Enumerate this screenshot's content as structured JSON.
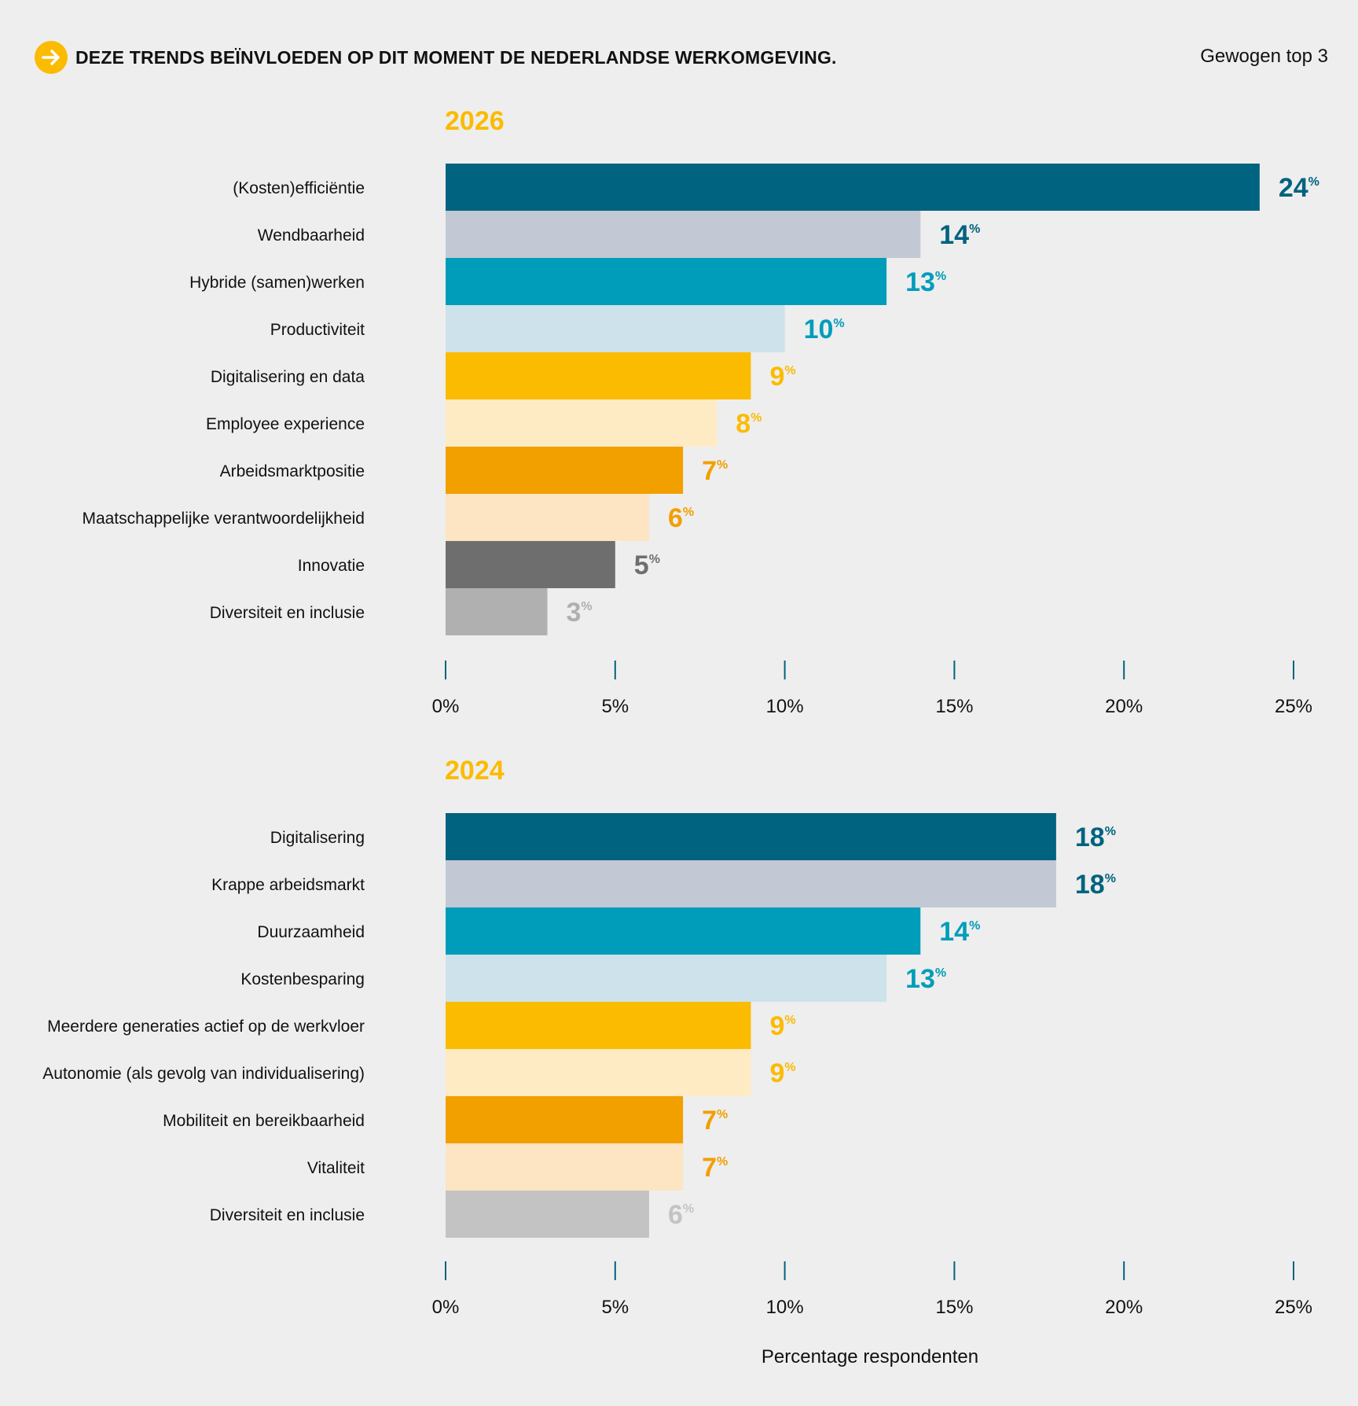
{
  "header": {
    "title": "DEZE TRENDS BEÏNVLOEDEN OP DIT MOMENT DE NEDERLANDSE WERKOMGEVING.",
    "note": "Gewogen top 3",
    "icon": "arrow-right-icon",
    "accent": "#fbbb00"
  },
  "chart_data": [
    {
      "type": "bar",
      "orientation": "horizontal",
      "title": "2026",
      "categories": [
        "(Kosten)efficiëntie",
        "Wendbaarheid",
        "Hybride (samen)werken",
        "Productiviteit",
        "Digitalisering en data",
        "Employee experience",
        "Arbeidsmarktpositie",
        "Maatschappelijke verantwoordelijkheid",
        "Innovatie",
        "Diversiteit en inclusie"
      ],
      "values": [
        24,
        14,
        13,
        10,
        9,
        8,
        7,
        6,
        5,
        3
      ],
      "value_labels": [
        "24",
        "14",
        "13",
        "10",
        "9",
        "8",
        "7",
        "6",
        "5",
        "3"
      ],
      "bar_colors": [
        "#00637f",
        "#c2c8d4",
        "#009dba",
        "#cde2ea",
        "#fbbb00",
        "#feebc3",
        "#f29f00",
        "#fde4c2",
        "#6f6e6f",
        "#b1b0b1"
      ],
      "label_colors": [
        "#00637f",
        "#00637f",
        "#009dba",
        "#009dba",
        "#fbbb00",
        "#fbbb00",
        "#f29f00",
        "#f29f00",
        "#6f6e6f",
        "#b1b0b1"
      ],
      "xlim": [
        0,
        25
      ],
      "xticks": [
        0,
        5,
        10,
        15,
        20,
        25
      ],
      "xtick_labels": [
        "0%",
        "5%",
        "10%",
        "15%",
        "20%",
        "25%"
      ],
      "percent_suffix": "%"
    },
    {
      "type": "bar",
      "orientation": "horizontal",
      "title": "2024",
      "categories": [
        "Digitalisering",
        "Krappe arbeidsmarkt",
        "Duurzaamheid",
        "Kostenbesparing",
        "Meerdere generaties actief op de werkvloer",
        "Autonomie (als gevolg van individualisering)",
        "Mobiliteit en bereikbaarheid",
        "Vitaliteit",
        "Diversiteit en inclusie"
      ],
      "values": [
        18,
        18,
        14,
        13,
        9,
        9,
        7,
        7,
        6
      ],
      "value_labels": [
        "18",
        "18",
        "14",
        "13",
        "9",
        "9",
        "7",
        "7",
        "6"
      ],
      "bar_colors": [
        "#00637f",
        "#c2c8d4",
        "#009dba",
        "#cde2ea",
        "#fbbb00",
        "#feebc3",
        "#f29f00",
        "#fde4c2",
        "#c4c3c4"
      ],
      "label_colors": [
        "#00637f",
        "#00637f",
        "#009dba",
        "#009dba",
        "#fbbb00",
        "#fbbb00",
        "#f29f00",
        "#f29f00",
        "#c4c3c4"
      ],
      "xlim": [
        0,
        25
      ],
      "xticks": [
        0,
        5,
        10,
        15,
        20,
        25
      ],
      "xtick_labels": [
        "0%",
        "5%",
        "10%",
        "15%",
        "20%",
        "25%"
      ],
      "xlabel": "Percentage respondenten",
      "percent_suffix": "%"
    }
  ]
}
